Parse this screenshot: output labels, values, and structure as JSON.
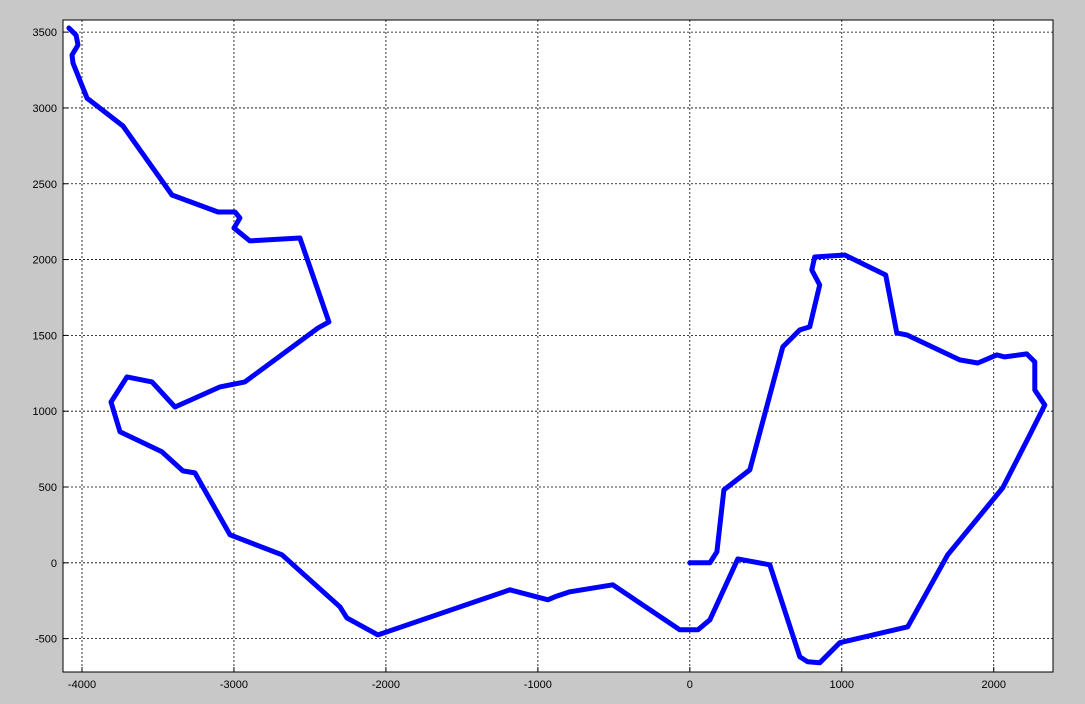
{
  "chart_data": {
    "type": "line",
    "color": "#0000ff",
    "x": [
      0,
      132,
      178,
      224,
      395,
      612,
      724,
      789,
      855,
      803,
      822,
      1020,
      1289,
      1362,
      1428,
      1776,
      1895,
      2020,
      2072,
      2217,
      2270,
      2270,
      2336,
      2237,
      2059,
      1697,
      1434,
      987,
      855,
      776,
      724,
      526,
      316,
      132,
      53,
      -66,
      -507,
      -789,
      -888,
      -934,
      -1184,
      -2053,
      -2257,
      -2303,
      -2684,
      -3026,
      -3257,
      -3336,
      -3474,
      -3750,
      -3809,
      -3704,
      -3539,
      -3388,
      -3092,
      -2928,
      -2447,
      -2375,
      -2566,
      -2895,
      -3000,
      -2961,
      -2993,
      -3105,
      -3408,
      -3730,
      -3967,
      -4059,
      -4066,
      -4026,
      -4039,
      -4086
    ],
    "values": [
      0,
      0,
      73,
      481,
      613,
      1424,
      1536,
      1556,
      1833,
      1931,
      2017,
      2030,
      1898,
      1516,
      1503,
      1338,
      1318,
      1371,
      1358,
      1378,
      1325,
      1140,
      1041,
      844,
      494,
      53,
      -422,
      -527,
      -659,
      -653,
      -620,
      -13,
      26,
      -376,
      -442,
      -442,
      -145,
      -191,
      -224,
      -244,
      -178,
      -475,
      -363,
      -290,
      53,
      185,
      593,
      606,
      732,
      864,
      1061,
      1226,
      1193,
      1028,
      1160,
      1193,
      1549,
      1589,
      2142,
      2123,
      2208,
      2274,
      2314,
      2314,
      2426,
      2881,
      3065,
      3296,
      3349,
      3415,
      3480,
      3527
    ],
    "xlim": [
      -4125,
      2390
    ],
    "ylim": [
      -720,
      3580
    ],
    "xticks": [
      -4000,
      -3000,
      -2000,
      -1000,
      0,
      1000,
      2000
    ],
    "yticks": [
      -500,
      0,
      500,
      1000,
      1500,
      2000,
      2500,
      3000,
      3500
    ],
    "grid": true
  }
}
